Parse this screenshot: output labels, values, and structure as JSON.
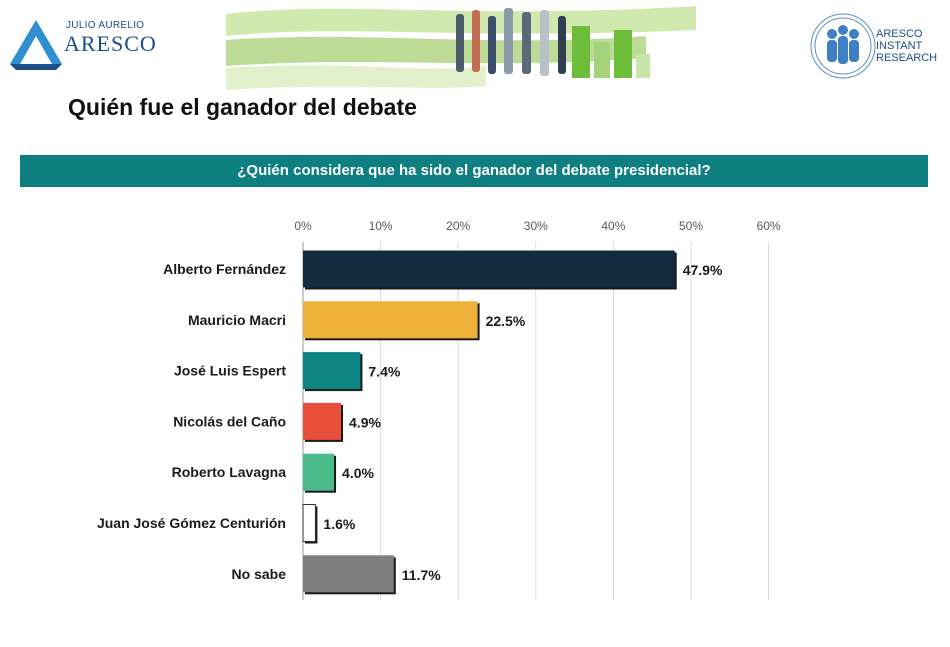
{
  "header": {
    "left_logo": {
      "super": "JULIO AURELIO",
      "name": "ARESCO"
    },
    "right_logo": {
      "line1": "ARESCO",
      "line2": "INSTANT",
      "line3": "RESEARCH"
    }
  },
  "page_title": "Quién fue el ganador del debate",
  "question": "¿Quién considera que ha sido el ganador del debate presidencial?",
  "colors": {
    "question_bar": "#0e7f80",
    "bars": [
      "#142c40",
      "#f0b13a",
      "#0e8483",
      "#e84f3b",
      "#4cbb8c",
      "#ffffff",
      "#7f7f7f"
    ]
  },
  "chart_data": {
    "type": "bar",
    "orientation": "horizontal",
    "categories": [
      "Alberto Fernández",
      "Mauricio Macri",
      "José Luis Espert",
      "Nicolás del Caño",
      "Roberto Lavagna",
      "Juan José Gómez Centurión",
      "No sabe"
    ],
    "values": [
      47.9,
      22.5,
      7.4,
      4.9,
      4.0,
      1.6,
      11.7
    ],
    "value_labels": [
      "47.9%",
      "22.5%",
      "7.4%",
      "4.9%",
      "4.0%",
      "1.6%",
      "11.7%"
    ],
    "xlim": [
      0,
      60
    ],
    "ticks": [
      "0%",
      "10%",
      "20%",
      "30%",
      "40%",
      "50%",
      "60%"
    ],
    "tick_values": [
      0,
      10,
      20,
      30,
      40,
      50,
      60
    ],
    "axis_position": "top",
    "grid": true
  }
}
